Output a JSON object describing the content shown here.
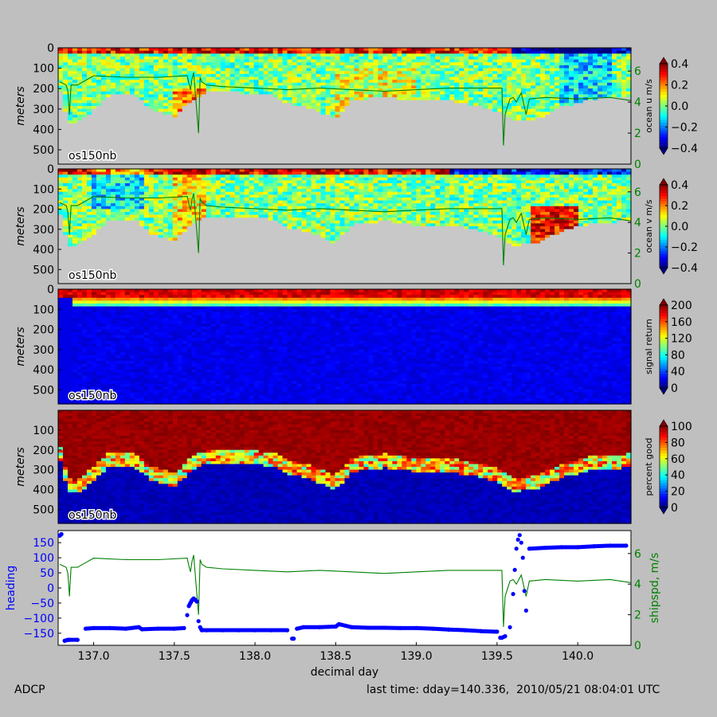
{
  "footer": {
    "left": "ADCP",
    "right": "last time: dday=140.336,  2010/05/21 08:04:01 UTC"
  },
  "colors": {
    "shipspd": "#008000",
    "heading": "#0000ff",
    "nodata": "#c8c8c8",
    "figure_bg": "#bfbfbf"
  },
  "chart_data": [
    {
      "type": "heatmap",
      "panel": "ocean-u",
      "label": "os150nb",
      "ylabel": "meters",
      "yticks": [
        "0",
        "100",
        "200",
        "300",
        "400",
        "500"
      ],
      "ylim": [
        570,
        0
      ],
      "xlim": [
        136.78,
        140.33
      ],
      "colorbar": {
        "label": "ocean u m/s",
        "range": [
          -0.4,
          0.4
        ],
        "ticks": [
          "0.4",
          "0.2",
          "0.0",
          "−0.2",
          "−0.4"
        ],
        "colormap": "jet"
      },
      "overlay": {
        "name": "shipspd",
        "right_ticks": [
          "6",
          "4",
          "2",
          "0"
        ],
        "right_range": [
          0,
          7.5
        ]
      }
    },
    {
      "type": "heatmap",
      "panel": "ocean-v",
      "label": "os150nb",
      "ylabel": "meters",
      "yticks": [
        "0",
        "100",
        "200",
        "300",
        "400",
        "500"
      ],
      "ylim": [
        570,
        0
      ],
      "xlim": [
        136.78,
        140.33
      ],
      "colorbar": {
        "label": "ocean v m/s",
        "range": [
          -0.4,
          0.4
        ],
        "ticks": [
          "0.4",
          "0.2",
          "0.0",
          "−0.2",
          "−0.4"
        ],
        "colormap": "jet"
      },
      "overlay": {
        "name": "shipspd",
        "right_ticks": [
          "6",
          "4",
          "2",
          "0"
        ],
        "right_range": [
          0,
          7.5
        ]
      }
    },
    {
      "type": "heatmap",
      "panel": "signal-return",
      "label": "os150nb",
      "ylabel": "meters",
      "yticks": [
        "0",
        "100",
        "200",
        "300",
        "400",
        "500"
      ],
      "ylim": [
        570,
        0
      ],
      "xlim": [
        136.78,
        140.33
      ],
      "colorbar": {
        "label": "signal return",
        "range": [
          0,
          200
        ],
        "ticks": [
          "200",
          "160",
          "120",
          "80",
          "40",
          "0"
        ],
        "colormap": "jet"
      }
    },
    {
      "type": "heatmap",
      "panel": "percent-good",
      "label": "os150nb",
      "ylabel": "meters",
      "yticks": [
        "100",
        "200",
        "300",
        "400",
        "500"
      ],
      "ylim": [
        570,
        0
      ],
      "xlim": [
        136.78,
        140.33
      ],
      "colorbar": {
        "label": "percent good",
        "range": [
          0,
          100
        ],
        "ticks": [
          "100",
          "80",
          "60",
          "40",
          "20",
          "0"
        ],
        "colormap": "jet"
      }
    },
    {
      "type": "scatter",
      "panel": "heading-shipspd",
      "xlabel": "decimal day",
      "xlim": [
        136.78,
        140.33
      ],
      "xticks": [
        137.0,
        137.5,
        138.0,
        138.5,
        139.0,
        139.5,
        140.0
      ],
      "xtick_labels": [
        "137.0",
        "137.5",
        "138.0",
        "138.5",
        "139.0",
        "139.5",
        "140.0"
      ],
      "ylabel_left": "heading",
      "ylim_left": [
        -190,
        190
      ],
      "yticks_left": [
        150,
        100,
        50,
        0,
        -50,
        -100,
        -150
      ],
      "ytick_labels_left": [
        "150",
        "100",
        "50",
        "0",
        "−50",
        "−100",
        "−150"
      ],
      "ylabel_right": "shipspd, m/s",
      "ylim_right": [
        0,
        7.5
      ],
      "yticks_right": [
        6,
        4,
        2,
        0
      ],
      "ytick_labels_right": [
        "6",
        "4",
        "2",
        "0"
      ],
      "heading": {
        "x": [
          136.79,
          136.8,
          136.82,
          136.84,
          136.85,
          136.9,
          136.95,
          137.0,
          137.1,
          137.2,
          137.28,
          137.3,
          137.4,
          137.5,
          137.56,
          137.58,
          137.59,
          137.6,
          137.61,
          137.62,
          137.63,
          137.64,
          137.65,
          137.66,
          137.67,
          137.7,
          137.8,
          137.9,
          138.0,
          138.1,
          138.2,
          138.23,
          138.24,
          138.26,
          138.3,
          138.4,
          138.5,
          138.52,
          138.6,
          138.7,
          138.8,
          138.9,
          139.0,
          139.1,
          139.2,
          139.3,
          139.4,
          139.5,
          139.52,
          139.53,
          139.55,
          139.58,
          139.6,
          139.61,
          139.62,
          139.63,
          139.64,
          139.65,
          139.66,
          139.67,
          139.68,
          139.7,
          139.8,
          139.9,
          140.0,
          140.1,
          140.2,
          140.3
        ],
        "y": [
          173,
          178,
          -175,
          -172,
          -172,
          -172,
          -135,
          -133,
          -133,
          -135,
          -130,
          -137,
          -135,
          -135,
          -133,
          -90,
          -60,
          -50,
          -40,
          -35,
          -40,
          -45,
          -110,
          -130,
          -140,
          -140,
          -140,
          -140,
          -140,
          -140,
          -140,
          -168,
          -168,
          -135,
          -130,
          -130,
          -128,
          -120,
          -130,
          -132,
          -132,
          -133,
          -133,
          -135,
          -138,
          -140,
          -143,
          -145,
          -165,
          -165,
          -160,
          -130,
          -20,
          60,
          130,
          160,
          175,
          150,
          100,
          -10,
          -75,
          130,
          133,
          135,
          135,
          138,
          140,
          140
        ]
      },
      "shipspd": {
        "x": [
          136.79,
          136.83,
          136.84,
          136.85,
          136.86,
          136.9,
          136.95,
          137.0,
          137.2,
          137.4,
          137.58,
          137.59,
          137.6,
          137.61,
          137.62,
          137.65,
          137.66,
          137.67,
          137.7,
          137.8,
          138.0,
          138.2,
          138.4,
          138.6,
          138.8,
          139.0,
          139.2,
          139.4,
          139.53,
          139.54,
          139.55,
          139.58,
          139.6,
          139.62,
          139.65,
          139.68,
          139.7,
          139.8,
          140.0,
          140.2,
          140.33
        ],
        "y": [
          5.3,
          5.1,
          4.7,
          3.2,
          5.1,
          5.1,
          5.4,
          5.7,
          5.6,
          5.6,
          5.7,
          5.2,
          4.8,
          5.5,
          5.9,
          2.0,
          5.6,
          5.3,
          5.1,
          5.0,
          4.9,
          4.8,
          4.9,
          4.8,
          4.7,
          4.8,
          4.9,
          4.9,
          4.9,
          1.2,
          3.2,
          4.2,
          4.3,
          4.0,
          4.6,
          3.2,
          4.2,
          4.3,
          4.2,
          4.3,
          4.1
        ]
      }
    }
  ]
}
